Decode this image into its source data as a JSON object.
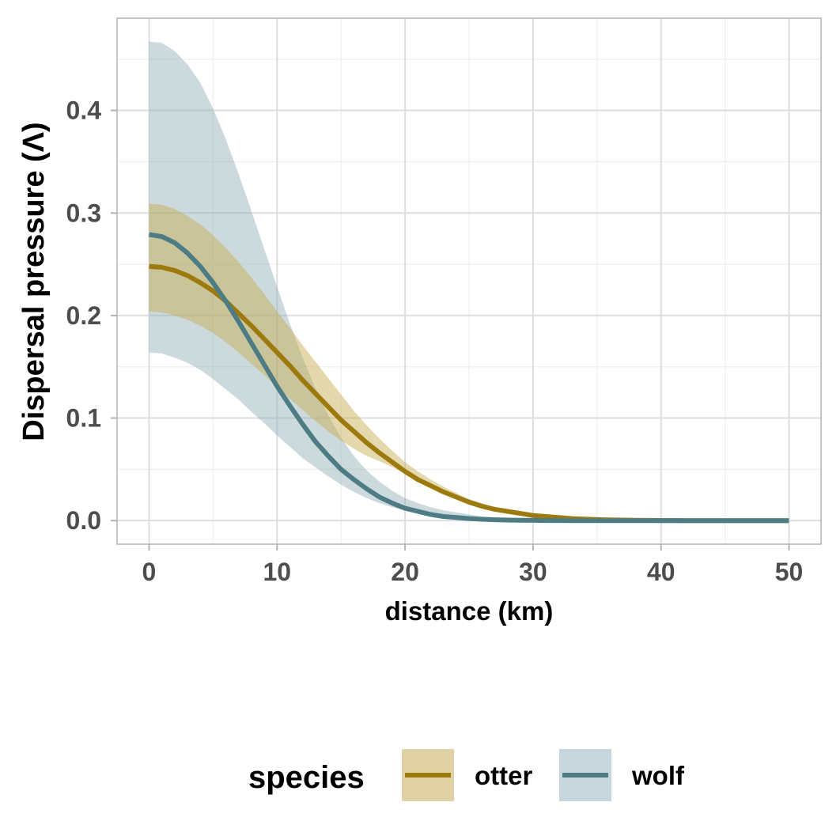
{
  "chart_data": {
    "type": "line",
    "xlabel": "distance (km)",
    "ylabel": "Dispersal pressure (Λ)",
    "xlim": [
      -2.5,
      52.5
    ],
    "ylim": [
      -0.023,
      0.49
    ],
    "x_ticks": [
      0,
      10,
      20,
      30,
      40,
      50
    ],
    "x_tick_labels": [
      "0",
      "10",
      "20",
      "30",
      "40",
      "50"
    ],
    "y_ticks": [
      0.0,
      0.1,
      0.2,
      0.3,
      0.4
    ],
    "y_tick_labels": [
      "0.0",
      "0.1",
      "0.2",
      "0.3",
      "0.4"
    ],
    "grid": true,
    "legend": {
      "title": "species",
      "position": "bottom",
      "entries": [
        "otter",
        "wolf"
      ]
    },
    "series": [
      {
        "name": "otter",
        "color": "#9C7A0E",
        "ribbon_color": "#C8A84A",
        "x": [
          0,
          1,
          2,
          3,
          4,
          5,
          6,
          7,
          8,
          9,
          10,
          11,
          12,
          13,
          14,
          15,
          16,
          17,
          18,
          19,
          20,
          21,
          22,
          23,
          24,
          25,
          26,
          27,
          28,
          29,
          30,
          31,
          32,
          33,
          34,
          35,
          36,
          37,
          38,
          39,
          40,
          41,
          42,
          43,
          44,
          45,
          46,
          47,
          48,
          49,
          50
        ],
        "y": [
          0.248,
          0.247,
          0.244,
          0.239,
          0.232,
          0.224,
          0.214,
          0.202,
          0.19,
          0.177,
          0.164,
          0.151,
          0.137,
          0.124,
          0.111,
          0.098,
          0.087,
          0.076,
          0.066,
          0.057,
          0.048,
          0.04,
          0.034,
          0.028,
          0.023,
          0.018,
          0.014,
          0.011,
          0.009,
          0.007,
          0.005,
          0.004,
          0.003,
          0.002,
          0.0015,
          0.001,
          0.0007,
          0.0005,
          0.0003,
          0.0002,
          0.0001,
          0.0001,
          0.0,
          0.0,
          0.0,
          0.0,
          0.0,
          0.0,
          0.0,
          0.0,
          0.0
        ],
        "lower": [
          0.204,
          0.203,
          0.2,
          0.196,
          0.19,
          0.183,
          0.174,
          0.164,
          0.153,
          0.142,
          0.13,
          0.119,
          0.108,
          0.097,
          0.087,
          0.078,
          0.07,
          0.063,
          0.058,
          0.052,
          0.046,
          0.039,
          0.033,
          0.027,
          0.022,
          0.017,
          0.013,
          0.01,
          0.008,
          0.006,
          0.004,
          0.003,
          0.0025,
          0.0018,
          0.0012,
          0.0008,
          0.0005,
          0.0003,
          0.0002,
          0.0001,
          0.0001,
          0.0,
          0.0,
          0.0,
          0.0,
          0.0,
          0.0,
          0.0,
          0.0,
          0.0,
          0.0
        ],
        "upper": [
          0.309,
          0.308,
          0.304,
          0.297,
          0.289,
          0.278,
          0.266,
          0.252,
          0.237,
          0.221,
          0.204,
          0.188,
          0.171,
          0.155,
          0.139,
          0.123,
          0.107,
          0.093,
          0.08,
          0.068,
          0.057,
          0.048,
          0.04,
          0.033,
          0.027,
          0.021,
          0.017,
          0.013,
          0.01,
          0.008,
          0.006,
          0.005,
          0.0035,
          0.0025,
          0.0018,
          0.0012,
          0.0008,
          0.0006,
          0.0004,
          0.0003,
          0.0002,
          0.0001,
          0.0001,
          0.0,
          0.0,
          0.0,
          0.0,
          0.0,
          0.0,
          0.0,
          0.0
        ]
      },
      {
        "name": "wolf",
        "color": "#4E7C84",
        "ribbon_color": "#8FACB4",
        "x": [
          0,
          1,
          2,
          3,
          4,
          5,
          6,
          7,
          8,
          9,
          10,
          11,
          12,
          13,
          14,
          15,
          16,
          17,
          18,
          19,
          20,
          21,
          22,
          23,
          24,
          25,
          26,
          27,
          28,
          29,
          30,
          31,
          32,
          33,
          34,
          35,
          36,
          37,
          38,
          39,
          40,
          41,
          42,
          43,
          44,
          45,
          46,
          47,
          48,
          49,
          50
        ],
        "y": [
          0.279,
          0.277,
          0.271,
          0.261,
          0.248,
          0.232,
          0.214,
          0.194,
          0.173,
          0.152,
          0.131,
          0.112,
          0.094,
          0.077,
          0.063,
          0.05,
          0.04,
          0.031,
          0.023,
          0.017,
          0.012,
          0.009,
          0.006,
          0.004,
          0.003,
          0.002,
          0.0013,
          0.0008,
          0.0005,
          0.0003,
          0.0002,
          0.0001,
          0.0001,
          0.0,
          0.0,
          0.0,
          0.0,
          0.0,
          0.0,
          0.0,
          0.0,
          0.0,
          0.0,
          0.0,
          0.0,
          0.0,
          0.0,
          0.0,
          0.0,
          0.0,
          0.0
        ],
        "lower": [
          0.164,
          0.163,
          0.159,
          0.154,
          0.147,
          0.138,
          0.128,
          0.118,
          0.106,
          0.095,
          0.083,
          0.072,
          0.061,
          0.052,
          0.043,
          0.035,
          0.028,
          0.022,
          0.017,
          0.013,
          0.01,
          0.007,
          0.005,
          0.004,
          0.003,
          0.002,
          0.0013,
          0.0008,
          0.0005,
          0.0003,
          0.0002,
          0.0001,
          0.0001,
          0.0,
          0.0,
          0.0,
          0.0,
          0.0,
          0.0,
          0.0,
          0.0,
          0.0,
          0.0,
          0.0,
          0.0,
          0.0,
          0.0,
          0.0,
          0.0,
          0.0,
          0.0
        ],
        "upper": [
          0.467,
          0.466,
          0.458,
          0.445,
          0.427,
          0.402,
          0.372,
          0.338,
          0.302,
          0.265,
          0.228,
          0.192,
          0.159,
          0.129,
          0.103,
          0.081,
          0.063,
          0.049,
          0.038,
          0.029,
          0.022,
          0.017,
          0.013,
          0.01,
          0.008,
          0.006,
          0.004,
          0.003,
          0.002,
          0.0015,
          0.001,
          0.0007,
          0.0005,
          0.0003,
          0.0002,
          0.0001,
          0.0001,
          0.0,
          0.0,
          0.0,
          0.0,
          0.0,
          0.0,
          0.0,
          0.0,
          0.0,
          0.0,
          0.0,
          0.0,
          0.0,
          0.0
        ]
      }
    ]
  },
  "colors": {
    "panel_border": "#B3B3B3",
    "grid_major": "#DEDEDE",
    "grid_minor": "#EFEFEF",
    "tick_text": "#4D4D4D",
    "label_text": "#000000",
    "otter_key_bg": "#E1D2A5",
    "wolf_key_bg": "#C7D6DA"
  }
}
